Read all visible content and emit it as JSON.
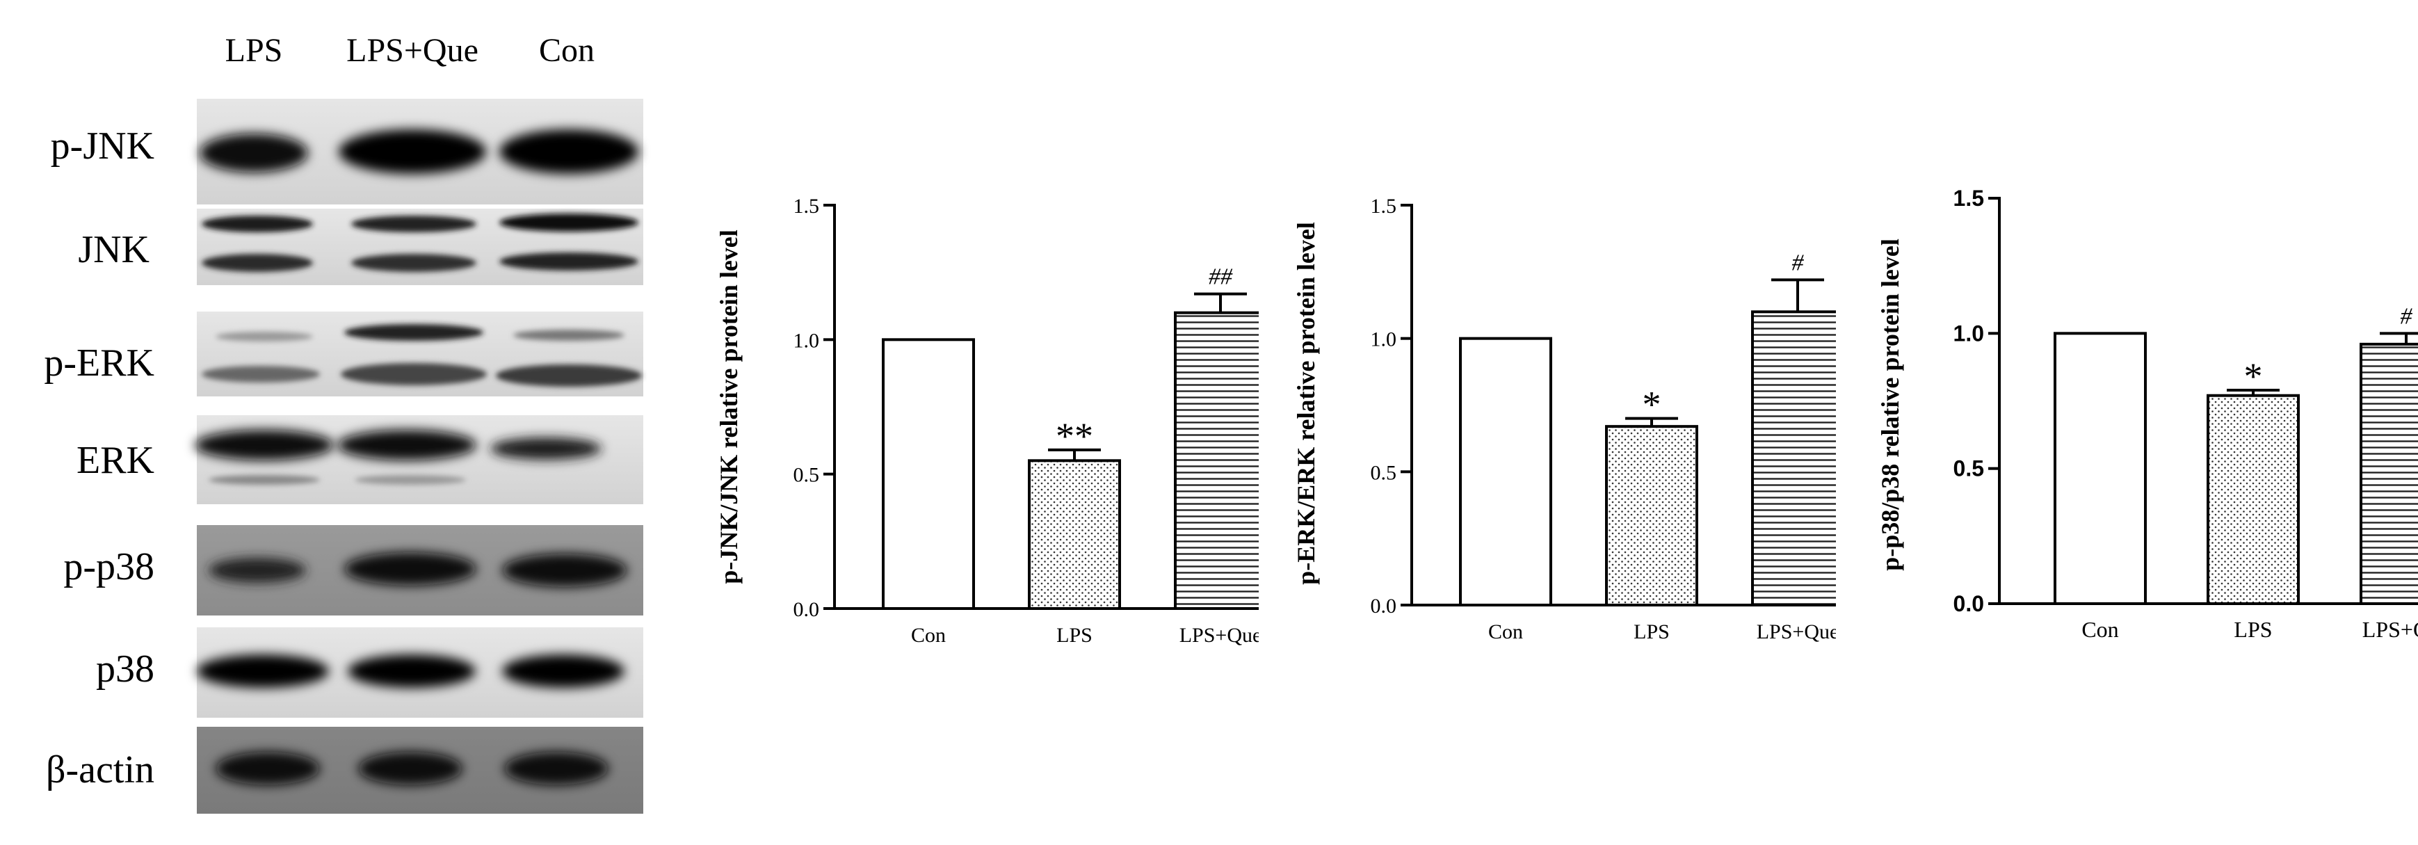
{
  "blot": {
    "lanes": [
      "LPS",
      "LPS+Que",
      "Con"
    ],
    "proteins": [
      "p-JNK",
      "JNK",
      "p-ERK",
      "ERK",
      "p-p38",
      "p38",
      "β-actin"
    ]
  },
  "chart_data": [
    {
      "type": "bar",
      "ylabel": "p-JNK/JNK relative protein level",
      "categories": [
        "Con",
        "LPS",
        "LPS+Que"
      ],
      "values": [
        1.0,
        0.55,
        1.1
      ],
      "errors": [
        0,
        0.04,
        0.07
      ],
      "annotations": [
        "",
        "**",
        "##"
      ],
      "patterns": [
        "empty",
        "dots",
        "hlines"
      ],
      "ylim": [
        0,
        1.5
      ],
      "yticks": [
        "0.0",
        "0.5",
        "1.0",
        "1.5"
      ]
    },
    {
      "type": "bar",
      "ylabel": "p-ERK/ERK relative protein level",
      "categories": [
        "Con",
        "LPS",
        "LPS+Que"
      ],
      "values": [
        1.0,
        0.67,
        1.1
      ],
      "errors": [
        0,
        0.03,
        0.12
      ],
      "annotations": [
        "",
        "*",
        "#"
      ],
      "patterns": [
        "empty",
        "dots",
        "hlines"
      ],
      "ylim": [
        0,
        1.5
      ],
      "yticks": [
        "0.0",
        "0.5",
        "1.0",
        "1.5"
      ]
    },
    {
      "type": "bar",
      "ylabel": "p-p38/p38 relative protein level",
      "categories": [
        "Con",
        "LPS",
        "LPS+Que"
      ],
      "values": [
        1.0,
        0.77,
        0.96
      ],
      "errors": [
        0,
        0.02,
        0.04
      ],
      "annotations": [
        "",
        "*",
        "#"
      ],
      "patterns": [
        "empty",
        "dots",
        "hlines"
      ],
      "ylim": [
        0,
        1.5
      ],
      "yticks": [
        "0.0",
        "0.5",
        "1.0",
        "1.5"
      ]
    }
  ]
}
